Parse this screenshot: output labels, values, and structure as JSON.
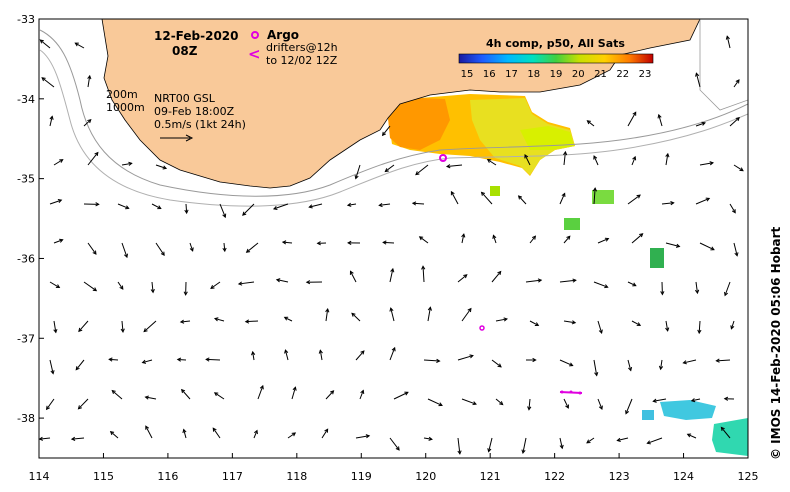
{
  "map": {
    "x_ticks": [
      "114",
      "115",
      "116",
      "117",
      "118",
      "119",
      "120",
      "121",
      "122",
      "123",
      "124",
      "125"
    ],
    "y_ticks": [
      "-33",
      "-34",
      "-35",
      "-36",
      "-37",
      "-38"
    ],
    "lon_range": [
      114,
      125
    ],
    "lat_range": [
      -38.5,
      -33
    ],
    "date": "12-Feb-2020",
    "hour": "08Z",
    "legend_argo": "Argo",
    "legend_drifters_1": "drifters@12h",
    "legend_drifters_2": "to 12/02 12Z",
    "contour_200": "200m",
    "contour_1000": "1000m",
    "product": "NRT00 GSL",
    "product_time": "09-Feb 18:00Z",
    "scale": "0.5m/s (1kt 24h)",
    "colorbar_title": "4h comp, p50, All Sats",
    "colorbar_ticks": [
      "15",
      "16",
      "17",
      "18",
      "19",
      "20",
      "21",
      "22",
      "23"
    ],
    "credit": "© IMOS 14-Feb-2020 05:06 Hobart",
    "colors": {
      "land": "#f9c999",
      "isobath": "#9a9a9a",
      "argo": "#e000e0",
      "drifter": "#e000e0"
    },
    "icons": [
      "argo-float-marker",
      "drifter-arrow",
      "current-vector-arrow"
    ]
  }
}
